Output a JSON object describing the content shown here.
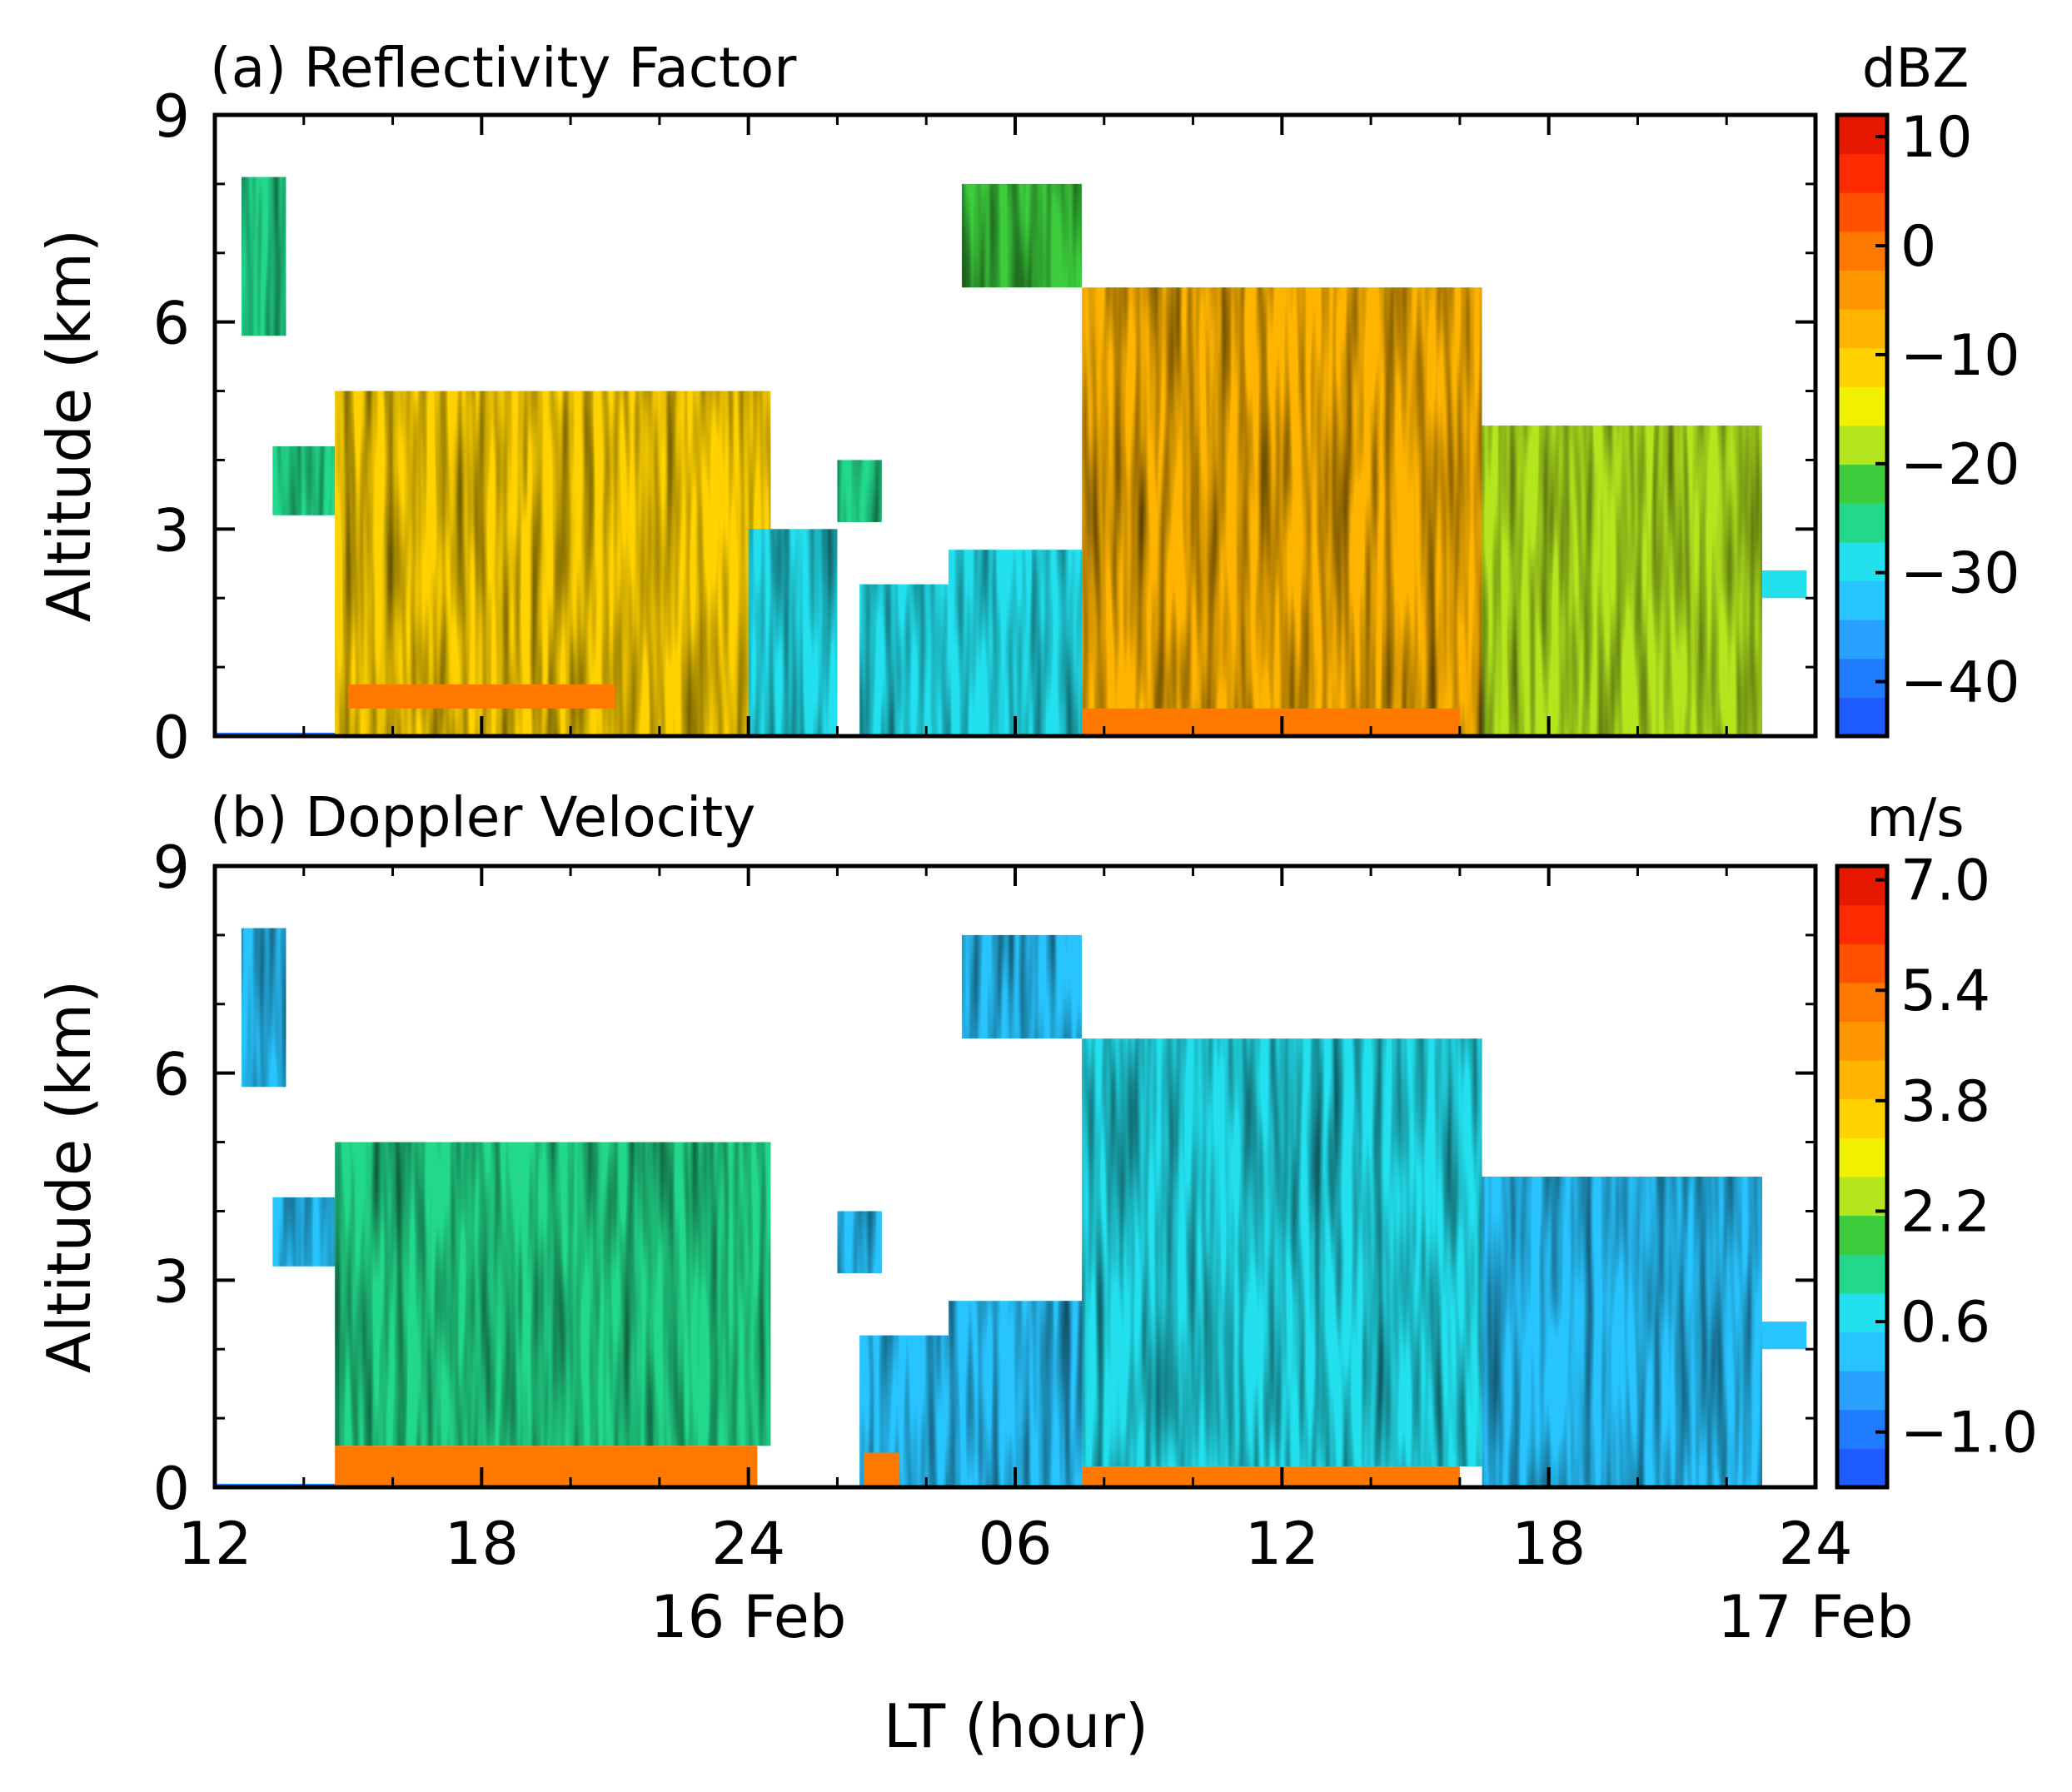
{
  "chart_data": [
    {
      "type": "heatmap",
      "title": "(a) Reflectivity Factor",
      "xlabel": "",
      "ylabel": "Altitude (km)",
      "ylim": [
        0,
        9
      ],
      "x_range_hours": [
        0,
        36
      ],
      "x_ticks": [
        0,
        6,
        12,
        18,
        24,
        30,
        36
      ],
      "y_ticks": [
        0,
        3,
        6,
        9
      ],
      "colorbar": {
        "unit": "dBZ",
        "range": [
          -45,
          12
        ],
        "ticks": [
          10,
          0,
          -10,
          -20,
          -30,
          -40
        ],
        "tick_labels": [
          "10",
          "0",
          "−10",
          "−20",
          "−30",
          "−40"
        ],
        "colors": [
          "#1e5cff",
          "#1f7cff",
          "#2aa0ff",
          "#28c4ff",
          "#22e0ee",
          "#22d88a",
          "#3ccc3c",
          "#b4e61e",
          "#f0f000",
          "#ffd200",
          "#ffb400",
          "#ff9600",
          "#ff7800",
          "#ff5000",
          "#ff2a00",
          "#e81800"
        ]
      },
      "regions": [
        {
          "x": [
            0,
            3
          ],
          "top": 0.05,
          "value": -40
        },
        {
          "x": [
            0.6,
            1.6
          ],
          "top": 8.1,
          "bottom": 5.8,
          "value": -25
        },
        {
          "x": [
            1.3,
            2.7
          ],
          "top": 4.2,
          "bottom": 3.2,
          "value": -25
        },
        {
          "x": [
            2.7,
            12.5
          ],
          "top": 5.0,
          "bottom": 0,
          "value": -10
        },
        {
          "x": [
            3.0,
            9.0
          ],
          "top": 0.75,
          "bottom": 0.4,
          "value": -2
        },
        {
          "x": [
            12.0,
            14.0
          ],
          "top": 3.0,
          "bottom": 0,
          "value": -28
        },
        {
          "x": [
            14.0,
            15.0
          ],
          "top": 4.0,
          "bottom": 3.1,
          "value": -25
        },
        {
          "x": [
            14.5,
            16.5
          ],
          "top": 2.2,
          "bottom": 0,
          "value": -30
        },
        {
          "x": [
            16.5,
            19.5
          ],
          "top": 2.7,
          "bottom": 0,
          "value": -28
        },
        {
          "x": [
            16.8,
            19.5
          ],
          "top": 8.0,
          "bottom": 6.5,
          "value": -22
        },
        {
          "x": [
            19.5,
            28.5
          ],
          "top": 6.5,
          "bottom": 0,
          "value": -8
        },
        {
          "x": [
            19.5,
            28.0
          ],
          "top": 0.4,
          "bottom": 0,
          "value": 0
        },
        {
          "x": [
            28.5,
            34.8
          ],
          "top": 4.5,
          "bottom": 0,
          "value": -20
        },
        {
          "x": [
            34.8,
            35.8
          ],
          "top": 2.4,
          "bottom": 2.0,
          "value": -30
        }
      ]
    },
    {
      "type": "heatmap",
      "title": "(b) Doppler Velocity",
      "xlabel": "LT (hour)",
      "ylabel": "Altitude (km)",
      "ylim": [
        0,
        9
      ],
      "x_range_hours": [
        0,
        36
      ],
      "x_ticks": [
        0,
        6,
        12,
        18,
        24,
        30,
        36
      ],
      "x_tick_labels": [
        "12",
        "18",
        "24",
        "06",
        "12",
        "18",
        "24"
      ],
      "x_date_labels": [
        {
          "at": 12,
          "text": "16 Feb"
        },
        {
          "at": 36,
          "text": "17 Feb"
        }
      ],
      "y_ticks": [
        0,
        3,
        6,
        9
      ],
      "colorbar": {
        "unit": "m/s",
        "range": [
          -1.8,
          7.2
        ],
        "ticks": [
          7.0,
          5.4,
          3.8,
          2.2,
          0.6,
          -1.0
        ],
        "tick_labels": [
          "7.0",
          "5.4",
          "3.8",
          "2.2",
          "0.6",
          "−1.0"
        ],
        "colors": [
          "#1e5cff",
          "#1f7cff",
          "#2aa0ff",
          "#28c4ff",
          "#22e0ee",
          "#22d88a",
          "#3ccc3c",
          "#b4e61e",
          "#f0f000",
          "#ffd200",
          "#ffb400",
          "#ff9600",
          "#ff7800",
          "#ff5000",
          "#ff2a00",
          "#e81800"
        ]
      },
      "regions": [
        {
          "x": [
            0,
            3
          ],
          "top": 0.05,
          "value": -1.0
        },
        {
          "x": [
            0.6,
            1.6
          ],
          "top": 8.1,
          "bottom": 5.8,
          "value": 0.0
        },
        {
          "x": [
            1.3,
            2.7
          ],
          "top": 4.2,
          "bottom": 3.2,
          "value": 0.2
        },
        {
          "x": [
            2.7,
            12.5
          ],
          "top": 5.0,
          "bottom": 0.6,
          "value": 1.2
        },
        {
          "x": [
            2.7,
            12.2
          ],
          "top": 0.6,
          "bottom": 0,
          "value": 5.5
        },
        {
          "x": [
            14.0,
            15.0
          ],
          "top": 4.0,
          "bottom": 3.1,
          "value": 0.2
        },
        {
          "x": [
            14.5,
            16.5
          ],
          "top": 2.2,
          "bottom": 0,
          "value": 0.0
        },
        {
          "x": [
            14.6,
            15.4
          ],
          "top": 0.5,
          "bottom": 0,
          "value": 5.0
        },
        {
          "x": [
            16.5,
            19.5
          ],
          "top": 2.7,
          "bottom": 0,
          "value": 0.3
        },
        {
          "x": [
            16.8,
            19.5
          ],
          "top": 8.0,
          "bottom": 6.5,
          "value": 0.3
        },
        {
          "x": [
            19.5,
            28.5
          ],
          "top": 6.5,
          "bottom": 0.3,
          "value": 1.0
        },
        {
          "x": [
            19.5,
            28.0
          ],
          "top": 0.3,
          "bottom": 0,
          "value": 5.5
        },
        {
          "x": [
            28.5,
            34.8
          ],
          "top": 4.5,
          "bottom": 0,
          "value": 0.3
        },
        {
          "x": [
            34.8,
            35.8
          ],
          "top": 2.4,
          "bottom": 2.0,
          "value": 0.0
        }
      ]
    }
  ]
}
